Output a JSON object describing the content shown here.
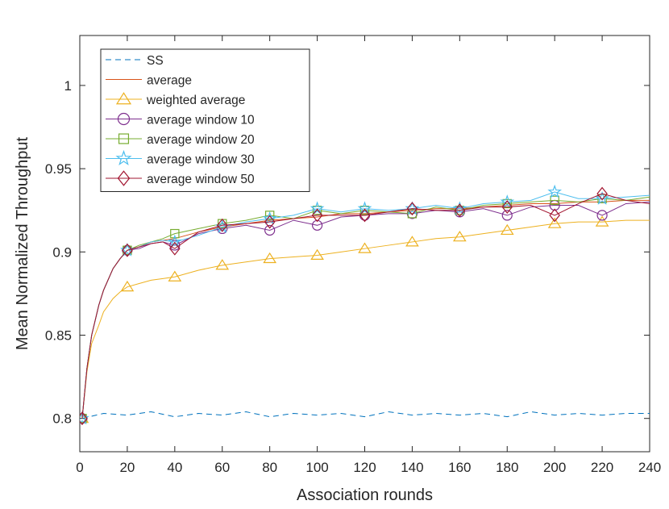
{
  "chart_data": {
    "type": "line",
    "title": "",
    "xlabel": "Association rounds",
    "ylabel": "Mean Normalized Throughput",
    "xlim": [
      0,
      240
    ],
    "ylim": [
      0.78,
      1.03
    ],
    "xticks": [
      0,
      20,
      40,
      60,
      80,
      100,
      120,
      140,
      160,
      180,
      200,
      220,
      240
    ],
    "yticks": [
      0.8,
      0.85,
      0.9,
      0.95,
      1
    ],
    "ytick_labels": [
      "0.8",
      "0.85",
      "0.9",
      "0.95",
      "1"
    ],
    "grid": false,
    "legend_position": "top-left",
    "marker_x": [
      1,
      20,
      40,
      60,
      80,
      100,
      120,
      140,
      160,
      180,
      200,
      220
    ],
    "series": [
      {
        "name": "SS",
        "color": "#0072BD",
        "line": "dashed",
        "marker": "none",
        "x": [
          1,
          10,
          20,
          30,
          40,
          50,
          60,
          70,
          80,
          90,
          100,
          110,
          120,
          130,
          140,
          150,
          160,
          170,
          180,
          190,
          200,
          210,
          220,
          230,
          240
        ],
        "values": [
          0.8,
          0.803,
          0.802,
          0.804,
          0.801,
          0.803,
          0.802,
          0.804,
          0.801,
          0.803,
          0.802,
          0.803,
          0.801,
          0.804,
          0.802,
          0.803,
          0.802,
          0.803,
          0.801,
          0.804,
          0.802,
          0.803,
          0.802,
          0.803,
          0.803
        ]
      },
      {
        "name": "average",
        "color": "#D95319",
        "line": "solid",
        "marker": "none",
        "x": [
          1,
          3,
          5,
          8,
          10,
          14,
          17,
          20,
          25,
          30,
          35,
          40,
          50,
          60,
          70,
          80,
          90,
          100,
          110,
          120,
          130,
          140,
          150,
          160,
          170,
          180,
          190,
          200,
          210,
          220,
          230,
          240
        ],
        "values": [
          0.8,
          0.83,
          0.85,
          0.868,
          0.877,
          0.89,
          0.896,
          0.901,
          0.903,
          0.906,
          0.907,
          0.908,
          0.912,
          0.915,
          0.917,
          0.919,
          0.92,
          0.921,
          0.923,
          0.923,
          0.924,
          0.925,
          0.926,
          0.926,
          0.927,
          0.928,
          0.929,
          0.929,
          0.93,
          0.93,
          0.931,
          0.931
        ]
      },
      {
        "name": "weighted average",
        "color": "#EDB120",
        "line": "solid",
        "marker": "triangle",
        "x": [
          1,
          3,
          5,
          8,
          10,
          14,
          17,
          20,
          25,
          30,
          35,
          40,
          50,
          60,
          70,
          80,
          90,
          100,
          110,
          120,
          130,
          140,
          150,
          160,
          170,
          180,
          190,
          200,
          210,
          220,
          230,
          240
        ],
        "values": [
          0.8,
          0.828,
          0.845,
          0.856,
          0.864,
          0.872,
          0.876,
          0.879,
          0.881,
          0.883,
          0.884,
          0.885,
          0.889,
          0.892,
          0.894,
          0.896,
          0.897,
          0.898,
          0.9,
          0.902,
          0.904,
          0.906,
          0.908,
          0.909,
          0.911,
          0.913,
          0.915,
          0.917,
          0.918,
          0.918,
          0.919,
          0.919
        ]
      },
      {
        "name": "average window 10",
        "color": "#7E2F8E",
        "line": "solid",
        "marker": "circle",
        "x": [
          1,
          3,
          5,
          8,
          10,
          14,
          17,
          20,
          25,
          30,
          35,
          40,
          50,
          60,
          70,
          80,
          90,
          100,
          110,
          120,
          130,
          140,
          150,
          160,
          170,
          180,
          190,
          200,
          210,
          220,
          230,
          240
        ],
        "values": [
          0.8,
          0.83,
          0.85,
          0.868,
          0.877,
          0.89,
          0.896,
          0.901,
          0.902,
          0.905,
          0.906,
          0.904,
          0.911,
          0.914,
          0.916,
          0.913,
          0.919,
          0.916,
          0.921,
          0.922,
          0.923,
          0.923,
          0.925,
          0.924,
          0.926,
          0.922,
          0.927,
          0.928,
          0.928,
          0.922,
          0.929,
          0.93
        ]
      },
      {
        "name": "average window 20",
        "color": "#77AC30",
        "line": "solid",
        "marker": "square",
        "x": [
          1,
          3,
          5,
          8,
          10,
          14,
          17,
          20,
          25,
          30,
          35,
          40,
          50,
          60,
          70,
          80,
          90,
          100,
          110,
          120,
          130,
          140,
          150,
          160,
          170,
          180,
          190,
          200,
          210,
          220,
          230,
          240
        ],
        "values": [
          0.8,
          0.83,
          0.85,
          0.868,
          0.877,
          0.89,
          0.896,
          0.901,
          0.904,
          0.906,
          0.908,
          0.911,
          0.914,
          0.917,
          0.919,
          0.922,
          0.92,
          0.925,
          0.923,
          0.925,
          0.924,
          0.923,
          0.927,
          0.925,
          0.928,
          0.929,
          0.93,
          0.931,
          0.93,
          0.932,
          0.931,
          0.933
        ]
      },
      {
        "name": "average window 30",
        "color": "#4DBEEE",
        "line": "solid",
        "marker": "star",
        "x": [
          1,
          3,
          5,
          8,
          10,
          14,
          17,
          20,
          25,
          30,
          35,
          40,
          50,
          60,
          70,
          80,
          90,
          100,
          110,
          120,
          130,
          140,
          150,
          160,
          170,
          180,
          190,
          200,
          210,
          220,
          230,
          240
        ],
        "values": [
          0.8,
          0.83,
          0.85,
          0.868,
          0.877,
          0.89,
          0.896,
          0.901,
          0.903,
          0.906,
          0.907,
          0.906,
          0.91,
          0.915,
          0.918,
          0.92,
          0.922,
          0.926,
          0.924,
          0.926,
          0.925,
          0.926,
          0.928,
          0.926,
          0.929,
          0.93,
          0.931,
          0.936,
          0.932,
          0.932,
          0.933,
          0.934
        ]
      },
      {
        "name": "average window 50",
        "color": "#A2142F",
        "line": "solid",
        "marker": "diamond",
        "x": [
          1,
          3,
          5,
          8,
          10,
          14,
          17,
          20,
          25,
          30,
          35,
          40,
          50,
          60,
          70,
          80,
          90,
          100,
          110,
          120,
          130,
          140,
          150,
          160,
          170,
          180,
          190,
          200,
          210,
          220,
          230,
          240
        ],
        "values": [
          0.8,
          0.83,
          0.85,
          0.868,
          0.877,
          0.89,
          0.896,
          0.901,
          0.903,
          0.905,
          0.906,
          0.902,
          0.912,
          0.916,
          0.917,
          0.918,
          0.92,
          0.922,
          0.922,
          0.922,
          0.924,
          0.926,
          0.925,
          0.925,
          0.927,
          0.927,
          0.928,
          0.922,
          0.929,
          0.935,
          0.931,
          0.929
        ]
      }
    ]
  }
}
